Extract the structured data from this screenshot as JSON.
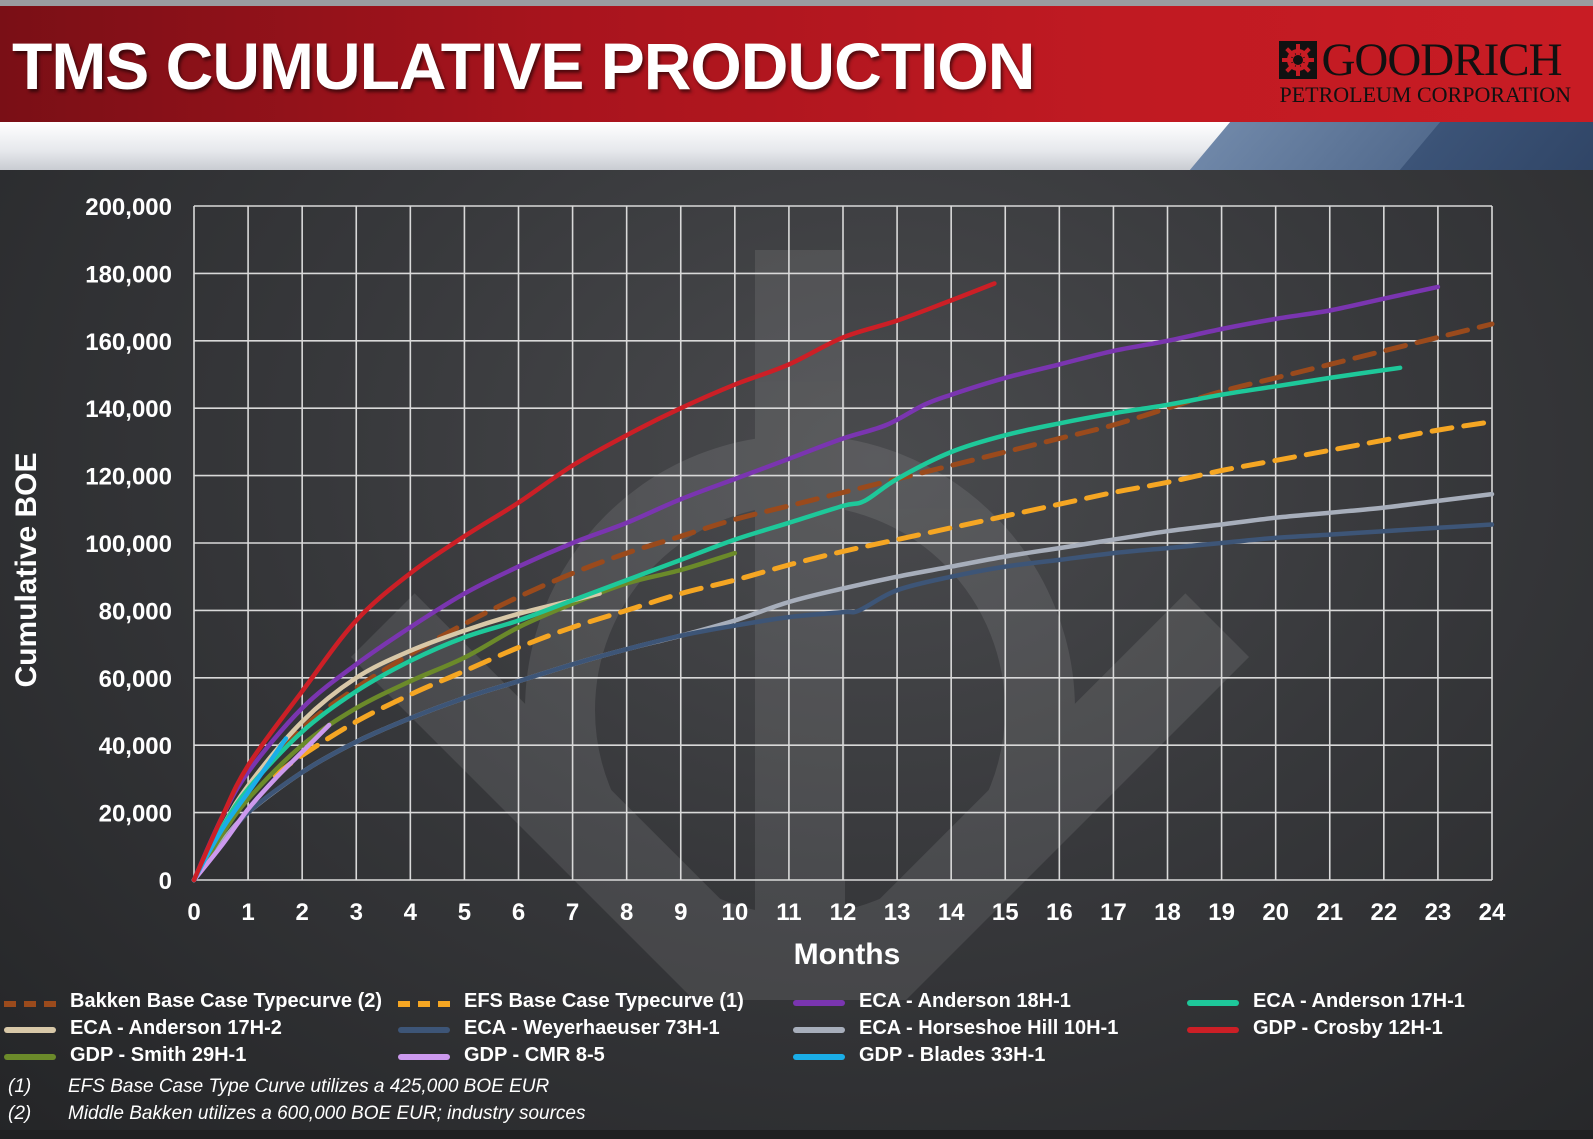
{
  "header": {
    "title": "TMS CUMULATIVE PRODUCTION",
    "logo_name": "GOODRICH",
    "logo_sub": "PETROLEUM CORPORATION"
  },
  "colors": {
    "header_red": "#b3161e",
    "background": "#333437",
    "grid": "#d8d8d8"
  },
  "chart_data": {
    "type": "line",
    "title": "",
    "xlabel": "Months",
    "ylabel": "Cumulative BOE",
    "xlim": [
      0,
      24
    ],
    "ylim": [
      0,
      200000
    ],
    "x_ticks": [
      0,
      1,
      2,
      3,
      4,
      5,
      6,
      7,
      8,
      9,
      10,
      11,
      12,
      13,
      14,
      15,
      16,
      17,
      18,
      19,
      20,
      21,
      22,
      23,
      24
    ],
    "y_ticks": [
      0,
      20000,
      40000,
      60000,
      80000,
      100000,
      120000,
      140000,
      160000,
      180000,
      200000
    ],
    "y_tick_labels": [
      "0",
      "20,000",
      "40,000",
      "60,000",
      "80,000",
      "100,000",
      "120,000",
      "140,000",
      "160,000",
      "180,000",
      "200,000"
    ],
    "grid": true,
    "series": [
      {
        "name": "Bakken Base Case Typecurve (2)",
        "color": "#9a4a1c",
        "dashed": true,
        "x": [
          0,
          1,
          2,
          3,
          4,
          5,
          6,
          7,
          8,
          9,
          10,
          11,
          12,
          13,
          14,
          15,
          16,
          17,
          18,
          19,
          20,
          21,
          22,
          23,
          24
        ],
        "y": [
          0,
          27000,
          45000,
          57000,
          67000,
          76000,
          84000,
          91000,
          97000,
          102000,
          107000,
          111000,
          115000,
          119000,
          123000,
          127000,
          131000,
          135000,
          140000,
          145000,
          149000,
          153000,
          157000,
          161000,
          165000
        ]
      },
      {
        "name": "EFS Base Case Typecurve (1)",
        "color": "#f5a623",
        "dashed": true,
        "x": [
          1.5,
          2,
          3,
          4,
          5,
          6,
          7,
          8,
          9,
          10,
          11,
          12,
          13,
          14,
          15,
          16,
          17,
          18,
          19,
          20,
          21,
          22,
          23,
          24
        ],
        "y": [
          31000,
          37000,
          47000,
          55000,
          62000,
          69000,
          75000,
          80000,
          85000,
          89000,
          93500,
          97500,
          101000,
          104500,
          108000,
          111500,
          115000,
          118000,
          121500,
          124500,
          127500,
          130500,
          133500,
          136000
        ]
      },
      {
        "name": "ECA - Anderson 18H-1",
        "color": "#7a35b0",
        "dashed": false,
        "x": [
          0,
          0.5,
          1,
          2,
          3,
          4,
          5,
          6,
          7,
          8,
          9,
          10,
          11,
          12,
          12.8,
          13.5,
          14,
          15,
          16,
          17,
          18,
          19,
          20,
          21,
          22,
          23
        ],
        "y": [
          0,
          18000,
          32000,
          51000,
          64000,
          75000,
          85000,
          93000,
          100000,
          106000,
          113000,
          119000,
          125000,
          131000,
          135000,
          141000,
          144000,
          149000,
          153000,
          157000,
          160000,
          163500,
          166500,
          169000,
          172500,
          176000
        ]
      },
      {
        "name": "ECA - Anderson 17H-1",
        "color": "#1ec89a",
        "dashed": false,
        "x": [
          0,
          0.5,
          1,
          2,
          3,
          4,
          5,
          6,
          7,
          8,
          9,
          10,
          11,
          12,
          12.4,
          13,
          14,
          15,
          16,
          17,
          18,
          19,
          20,
          21,
          22.3
        ],
        "y": [
          0,
          15000,
          27000,
          44000,
          56000,
          65000,
          72000,
          77000,
          83000,
          89000,
          95000,
          101000,
          106000,
          111000,
          112500,
          119000,
          127000,
          132000,
          135500,
          138500,
          141000,
          144000,
          146500,
          149000,
          152000
        ]
      },
      {
        "name": "ECA - Anderson 17H-2",
        "color": "#d8c8a8",
        "dashed": false,
        "x": [
          0,
          0.5,
          1,
          2,
          3,
          4,
          5,
          6,
          7,
          7.5
        ],
        "y": [
          0,
          15000,
          28000,
          47000,
          60000,
          68000,
          74000,
          79000,
          83000,
          85000
        ]
      },
      {
        "name": "ECA - Weyerhaeuser 73H-1",
        "color": "#3d5577",
        "dashed": false,
        "x": [
          0,
          0.5,
          1,
          2,
          3,
          4,
          5,
          6,
          7,
          8,
          9,
          10,
          11,
          12,
          12.3,
          13,
          14,
          15,
          16,
          17,
          18,
          19,
          20,
          21,
          22,
          23,
          24
        ],
        "y": [
          0,
          10000,
          20000,
          32000,
          41000,
          48000,
          54000,
          59000,
          64000,
          68500,
          72500,
          75500,
          78000,
          79500,
          80000,
          86000,
          90000,
          93000,
          95000,
          97000,
          98500,
          100000,
          101500,
          102500,
          103500,
          104500,
          105500
        ]
      },
      {
        "name": "ECA - Horseshoe Hill 10H-1",
        "color": "#a7aebb",
        "dashed": false,
        "x": [
          0,
          0.5,
          1,
          2,
          3,
          4,
          5,
          6,
          7,
          8,
          9,
          10,
          11,
          12,
          13,
          14,
          15,
          16,
          17,
          18,
          19,
          20,
          21,
          22,
          23,
          24
        ],
        "y": [
          0,
          11000,
          20000,
          32000,
          41000,
          48000,
          54000,
          59000,
          64000,
          68500,
          72500,
          77000,
          82500,
          86500,
          90000,
          93000,
          96000,
          98500,
          101000,
          103500,
          105500,
          107500,
          109000,
          110500,
          112500,
          114500
        ]
      },
      {
        "name": "GDP - Crosby 12H-1",
        "color": "#cc1f26",
        "dashed": false,
        "x": [
          0,
          0.5,
          1,
          2,
          3,
          4,
          5,
          6,
          7,
          8,
          9,
          10,
          11,
          12,
          13,
          14,
          14.8
        ],
        "y": [
          0,
          18000,
          34000,
          56000,
          77000,
          91000,
          102000,
          112000,
          123000,
          132000,
          140000,
          147000,
          153000,
          161000,
          166000,
          172000,
          177000
        ]
      },
      {
        "name": "GDP - Smith 29H-1",
        "color": "#6b8a2a",
        "dashed": false,
        "x": [
          0,
          0.5,
          1,
          2,
          3,
          4,
          5,
          6,
          7,
          8,
          9,
          10
        ],
        "y": [
          0,
          13000,
          24000,
          40000,
          51000,
          59000,
          66000,
          75000,
          82000,
          88000,
          92000,
          97000
        ]
      },
      {
        "name": "GDP - CMR 8-5",
        "color": "#cc99ee",
        "dashed": false,
        "x": [
          0,
          0.5,
          1,
          1.5,
          2,
          2.5
        ],
        "y": [
          0,
          10000,
          21000,
          30000,
          38000,
          46000
        ]
      },
      {
        "name": "GDP - Blades 33H-1",
        "color": "#1aaee8",
        "dashed": false,
        "x": [
          0,
          0.3,
          0.6,
          1,
          1.4,
          1.7
        ],
        "y": [
          0,
          9000,
          17000,
          26000,
          35000,
          42000
        ]
      }
    ]
  },
  "footnotes": [
    {
      "num": "(1)",
      "text": "EFS Base Case Type Curve utilizes a 425,000 BOE EUR"
    },
    {
      "num": "(2)",
      "text": "Middle Bakken utilizes a 600,000 BOE EUR; industry sources"
    }
  ]
}
